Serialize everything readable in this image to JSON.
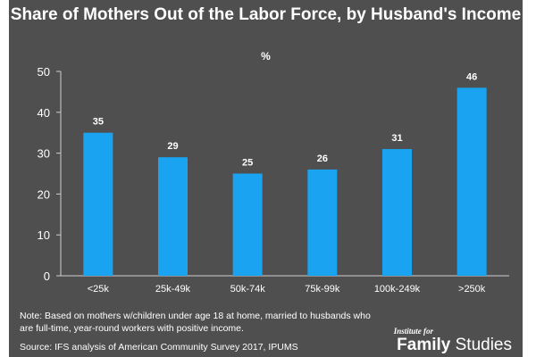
{
  "chart_data": {
    "type": "bar",
    "title": "Share of Mothers Out of the Labor Force, by Husband's Income",
    "subtitle": "%",
    "categories": [
      "<25k",
      "25k-49k",
      "50k-74k",
      "75k-99k",
      "100k-249k",
      ">250k"
    ],
    "values": [
      35,
      29,
      25,
      26,
      31,
      46
    ],
    "ylim": [
      0,
      50
    ],
    "yticks": [
      0,
      10,
      20,
      30,
      40,
      50
    ],
    "grid": false,
    "data_labels": true
  },
  "footer": {
    "note": "Note: Based on mothers w/children under age 18 at home, married to husbands who are full-time, year-round workers with positive income.",
    "source": "Source: IFS analysis of American Community Survey 2017, IPUMS",
    "logo_small": "Institute for",
    "logo_family": "Family",
    "logo_studies": "Studies"
  },
  "colors": {
    "background": "#4f4f4f",
    "bar": "#1aa3f0",
    "text": "#ffffff",
    "axis": "#cfcfcf"
  }
}
